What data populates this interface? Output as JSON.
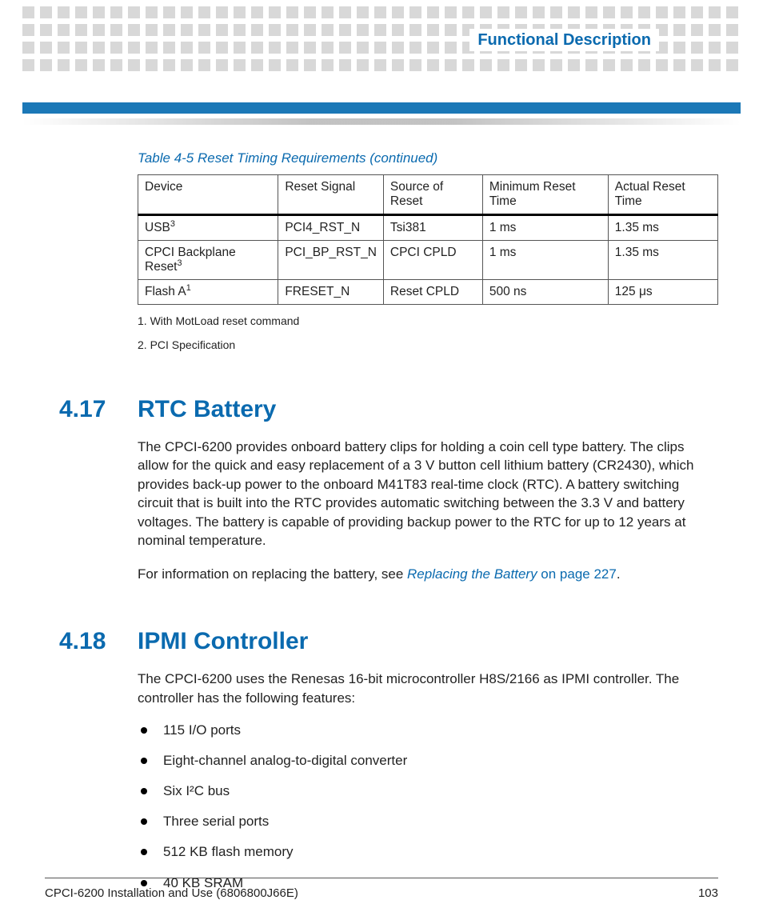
{
  "header": {
    "chapter_title": "Functional Description",
    "square_color": "#d8d8d8",
    "bar_blue_color": "#1b78b7"
  },
  "table": {
    "caption": "Table 4-5 Reset Timing Requirements (continued)",
    "columns": [
      "Device",
      "Reset Signal",
      "Source of Reset",
      "Minimum Reset Time",
      "Actual Reset Time"
    ],
    "rows": [
      {
        "device": "USB",
        "device_sup": "3",
        "signal": "PCI4_RST_N",
        "source": "Tsi381",
        "min": "1 ms",
        "actual": "1.35 ms"
      },
      {
        "device": "CPCI Backplane Reset",
        "device_sup": "3",
        "signal": "PCI_BP_RST_N",
        "source": "CPCI CPLD",
        "min": "1 ms",
        "actual": "1.35 ms"
      },
      {
        "device": "Flash A",
        "device_sup": "1",
        "signal": "FRESET_N",
        "source": "Reset CPLD",
        "min": "500 ns",
        "actual": "125 μs"
      }
    ],
    "footnotes": [
      "1. With MotLoad reset command",
      "2. PCI Specification"
    ]
  },
  "sections": {
    "rtc": {
      "number": "4.17",
      "title": "RTC Battery",
      "para1": "The CPCI-6200 provides onboard battery clips for holding a coin cell type battery. The clips allow for the quick and easy replacement of a 3 V button cell lithium battery (CR2430), which provides back-up power to the onboard M41T83 real-time clock (RTC). A battery switching circuit that is built into the RTC provides automatic switching between the 3.3 V and battery voltages. The battery is capable of providing backup power to the RTC for up to 12 years at nominal temperature.",
      "para2_pre": "For information on replacing the battery, see ",
      "para2_link_italic": "Replacing the Battery",
      "para2_link_rest": " on page 227",
      "para2_post": "."
    },
    "ipmi": {
      "number": "4.18",
      "title": "IPMI Controller",
      "intro": "The CPCI-6200 uses the Renesas 16-bit microcontroller H8S/2166 as IPMI controller. The controller has the following features:",
      "features": [
        "115 I/O ports",
        "Eight-channel analog-to-digital converter",
        "Six I²C bus",
        "Three serial ports",
        "512 KB flash memory",
        "40 KB SRAM"
      ]
    }
  },
  "footer": {
    "doc": "CPCI-6200 Installation and Use (6806800J66E)",
    "page": "103"
  }
}
